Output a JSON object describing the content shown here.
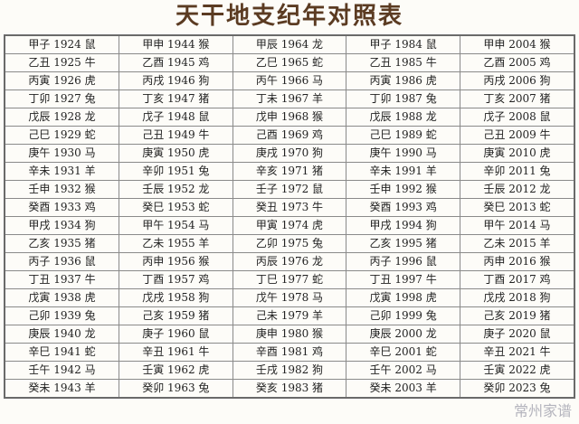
{
  "title": "天干地支纪年对照表",
  "watermark": "常州家谱",
  "rows": [
    [
      "甲子 1924 鼠",
      "甲申 1944 猴",
      "甲辰 1964 龙",
      "甲子 1984 鼠",
      "甲申 2004 猴"
    ],
    [
      "乙丑 1925 牛",
      "乙酉 1945 鸡",
      "乙巳 1965 蛇",
      "乙丑 1985 牛",
      "乙酉 2005 鸡"
    ],
    [
      "丙寅 1926 虎",
      "丙戌 1946 狗",
      "丙午 1966 马",
      "丙寅 1986 虎",
      "丙戌 2006 狗"
    ],
    [
      "丁卯 1927 兔",
      "丁亥 1947 猪",
      "丁未 1967 羊",
      "丁卯 1987 兔",
      "丁亥 2007 猪"
    ],
    [
      "戊辰 1928 龙",
      "戊子 1948 鼠",
      "戊申 1968 猴",
      "戊辰 1988 龙",
      "戊子 2008 鼠"
    ],
    [
      "己巳 1929 蛇",
      "己丑 1949 牛",
      "己酉 1969 鸡",
      "己巳 1989 蛇",
      "己丑 2009 牛"
    ],
    [
      "庚午 1930 马",
      "庚寅 1950 虎",
      "庚戌 1970 狗",
      "庚午 1990 马",
      "庚寅 2010 虎"
    ],
    [
      "辛未 1931 羊",
      "辛卯 1951 兔",
      "辛亥 1971 猪",
      "辛未 1991 羊",
      "辛卯 2011 兔"
    ],
    [
      "壬申 1932 猴",
      "壬辰 1952 龙",
      "壬子 1972 鼠",
      "壬申 1992 猴",
      "壬辰 2012 龙"
    ],
    [
      "癸酉 1933 鸡",
      "癸巳 1953 蛇",
      "癸丑 1973 牛",
      "癸酉 1993 鸡",
      "癸巳 2013 蛇"
    ],
    [
      "甲戌 1934 狗",
      "甲午 1954 马",
      "甲寅 1974 虎",
      "甲戌 1994 狗",
      "甲午 2014 马"
    ],
    [
      "乙亥 1935 猪",
      "乙未 1955 羊",
      "乙卯 1975 兔",
      "乙亥 1995 猪",
      "乙未 2015 羊"
    ],
    [
      "丙子 1936 鼠",
      "丙申 1956 猴",
      "丙辰 1976 龙",
      "丙子 1996 鼠",
      "丙申 2016 猴"
    ],
    [
      "丁丑 1937 牛",
      "丁酉 1957 鸡",
      "丁巳 1977 蛇",
      "丁丑 1997 牛",
      "丁酉 2017 鸡"
    ],
    [
      "戊寅 1938 虎",
      "戊戌 1958 狗",
      "戊午 1978 马",
      "戊寅 1998 虎",
      "戊戌 2018 狗"
    ],
    [
      "己卯 1939 兔",
      "己亥 1959 猪",
      "己未 1979 羊",
      "己卯 1999 兔",
      "己亥 2019 猪"
    ],
    [
      "庚辰 1940 龙",
      "庚子 1960 鼠",
      "庚申 1980 猴",
      "庚辰 2000 龙",
      "庚子 2020 鼠"
    ],
    [
      "辛巳 1941 蛇",
      "辛丑 1961 牛",
      "辛酉 1981 鸡",
      "辛巳 2001 蛇",
      "辛丑 2021 牛"
    ],
    [
      "壬午 1942 马",
      "壬寅 1962 虎",
      "壬戌 1982 狗",
      "壬午 2002 马",
      "壬寅 2022 虎"
    ],
    [
      "癸未 1943 羊",
      "癸卯 1963 兔",
      "癸亥 1983 猪",
      "癸未 2003 羊",
      "癸卯 2023 兔"
    ]
  ]
}
